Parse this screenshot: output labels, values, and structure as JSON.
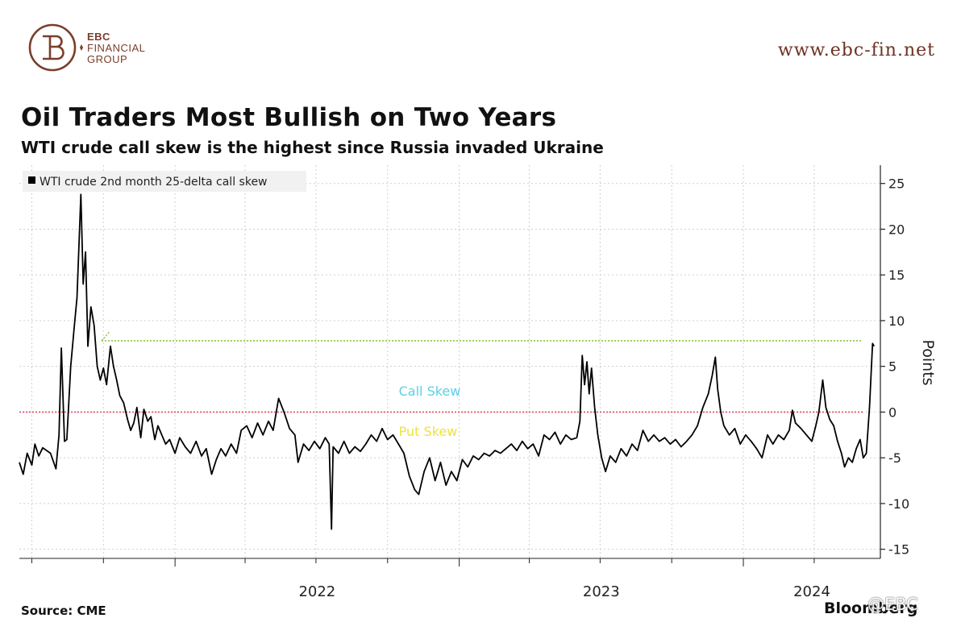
{
  "brand": {
    "name_line1": "EBC",
    "name_line2": "FINANCIAL",
    "name_line3": "GROUP",
    "url": "www.ebc-fin.net",
    "color": "#7a3e2b"
  },
  "title": "Oil Traders Most Bullish on Two Years",
  "subtitle": "WTI crude call skew is the highest since Russia invaded Ukraine",
  "source": "Source: CME",
  "footer_logo": "Bloomberg",
  "watermark": "@EBC",
  "chart_data": {
    "type": "line",
    "legend": "WTI crude 2nd month 25-delta call skew",
    "legend_placement": "top-left",
    "ylabel": "Points",
    "y_axis_side": "right",
    "ylim": [
      -16,
      27
    ],
    "yticks": [
      25,
      20,
      15,
      10,
      5,
      0,
      -5,
      -10,
      -15
    ],
    "x_tick_labels": [
      "2022",
      "2023",
      "2024"
    ],
    "xlim": [
      "2021-06-15",
      "2024-06-25"
    ],
    "grid": true,
    "annotations": [
      {
        "text": "Call Skew",
        "color": "#5bd0e4"
      },
      {
        "text": "Put Skew",
        "color": "#efe23a"
      }
    ],
    "reference_lines": [
      {
        "name": "zero",
        "y": 0,
        "color": "#e0506a",
        "style": "dotted"
      },
      {
        "name": "current level",
        "y": 7.8,
        "color": "#8cc63f",
        "style": "dotted"
      }
    ],
    "series": [
      {
        "color": "#000000",
        "points": [
          [
            "2021-06-15",
            -5.5
          ],
          [
            "2021-06-20",
            -6.8
          ],
          [
            "2021-06-25",
            -4.5
          ],
          [
            "2021-07-01",
            -5.8
          ],
          [
            "2021-07-05",
            -3.5
          ],
          [
            "2021-07-10",
            -4.8
          ],
          [
            "2021-07-15",
            -3.9
          ],
          [
            "2021-07-20",
            -4.2
          ],
          [
            "2021-07-25",
            -4.5
          ],
          [
            "2021-08-01",
            -6.2
          ],
          [
            "2021-08-05",
            -2.5
          ],
          [
            "2021-08-08",
            7.0
          ],
          [
            "2021-08-12",
            -3.2
          ],
          [
            "2021-08-15",
            -3.0
          ],
          [
            "2021-08-20",
            5.0
          ],
          [
            "2021-08-25",
            9.8
          ],
          [
            "2021-08-28",
            12.5
          ],
          [
            "2021-09-02",
            23.8
          ],
          [
            "2021-09-05",
            14.0
          ],
          [
            "2021-09-08",
            17.5
          ],
          [
            "2021-09-11",
            7.2
          ],
          [
            "2021-09-15",
            11.5
          ],
          [
            "2021-09-19",
            9.5
          ],
          [
            "2021-09-23",
            5.0
          ],
          [
            "2021-09-27",
            3.5
          ],
          [
            "2021-10-01",
            4.8
          ],
          [
            "2021-10-05",
            3.0
          ],
          [
            "2021-10-10",
            7.2
          ],
          [
            "2021-10-14",
            5.0
          ],
          [
            "2021-10-18",
            3.5
          ],
          [
            "2021-10-22",
            1.8
          ],
          [
            "2021-10-27",
            1.0
          ],
          [
            "2021-11-01",
            -0.8
          ],
          [
            "2021-11-05",
            -2.0
          ],
          [
            "2021-11-09",
            -1.2
          ],
          [
            "2021-11-13",
            0.5
          ],
          [
            "2021-11-18",
            -2.8
          ],
          [
            "2021-11-22",
            0.3
          ],
          [
            "2021-11-27",
            -1.0
          ],
          [
            "2021-12-01",
            -0.5
          ],
          [
            "2021-12-06",
            -3.0
          ],
          [
            "2021-12-10",
            -1.5
          ],
          [
            "2021-12-15",
            -2.5
          ],
          [
            "2021-12-20",
            -3.5
          ],
          [
            "2021-12-25",
            -3.0
          ],
          [
            "2022-01-01",
            -4.5
          ],
          [
            "2022-01-07",
            -2.8
          ],
          [
            "2022-01-14",
            -3.8
          ],
          [
            "2022-01-21",
            -4.5
          ],
          [
            "2022-01-28",
            -3.2
          ],
          [
            "2022-02-04",
            -4.8
          ],
          [
            "2022-02-10",
            -4.0
          ],
          [
            "2022-02-17",
            -6.8
          ],
          [
            "2022-02-23",
            -5.2
          ],
          [
            "2022-03-01",
            -4.0
          ],
          [
            "2022-03-07",
            -4.8
          ],
          [
            "2022-03-14",
            -3.5
          ],
          [
            "2022-03-21",
            -4.5
          ],
          [
            "2022-03-27",
            -2.0
          ],
          [
            "2022-04-03",
            -1.5
          ],
          [
            "2022-04-10",
            -2.8
          ],
          [
            "2022-04-17",
            -1.2
          ],
          [
            "2022-04-24",
            -2.5
          ],
          [
            "2022-05-01",
            -1.0
          ],
          [
            "2022-05-07",
            -2.0
          ],
          [
            "2022-05-14",
            1.5
          ],
          [
            "2022-05-21",
            0.0
          ],
          [
            "2022-05-28",
            -1.8
          ],
          [
            "2022-06-04",
            -2.5
          ],
          [
            "2022-06-08",
            -5.5
          ],
          [
            "2022-06-15",
            -3.5
          ],
          [
            "2022-06-22",
            -4.2
          ],
          [
            "2022-06-29",
            -3.2
          ],
          [
            "2022-07-06",
            -4.0
          ],
          [
            "2022-07-13",
            -2.8
          ],
          [
            "2022-07-18",
            -3.5
          ],
          [
            "2022-07-21",
            -12.8
          ],
          [
            "2022-07-23",
            -3.8
          ],
          [
            "2022-07-30",
            -4.5
          ],
          [
            "2022-08-06",
            -3.2
          ],
          [
            "2022-08-13",
            -4.5
          ],
          [
            "2022-08-20",
            -3.8
          ],
          [
            "2022-08-27",
            -4.3
          ],
          [
            "2022-09-03",
            -3.5
          ],
          [
            "2022-09-10",
            -2.5
          ],
          [
            "2022-09-17",
            -3.2
          ],
          [
            "2022-09-24",
            -1.8
          ],
          [
            "2022-10-01",
            -3.0
          ],
          [
            "2022-10-08",
            -2.5
          ],
          [
            "2022-10-15",
            -3.5
          ],
          [
            "2022-10-22",
            -4.5
          ],
          [
            "2022-10-29",
            -7.0
          ],
          [
            "2022-11-05",
            -8.5
          ],
          [
            "2022-11-10",
            -9.0
          ],
          [
            "2022-11-17",
            -6.5
          ],
          [
            "2022-11-24",
            -5.0
          ],
          [
            "2022-12-01",
            -7.5
          ],
          [
            "2022-12-08",
            -5.5
          ],
          [
            "2022-12-15",
            -8.0
          ],
          [
            "2022-12-22",
            -6.5
          ],
          [
            "2022-12-29",
            -7.5
          ],
          [
            "2023-01-05",
            -5.2
          ],
          [
            "2023-01-12",
            -6.0
          ],
          [
            "2023-01-19",
            -4.8
          ],
          [
            "2023-01-26",
            -5.2
          ],
          [
            "2023-02-02",
            -4.5
          ],
          [
            "2023-02-09",
            -4.8
          ],
          [
            "2023-02-16",
            -4.2
          ],
          [
            "2023-02-23",
            -4.5
          ],
          [
            "2023-03-02",
            -4.0
          ],
          [
            "2023-03-09",
            -3.5
          ],
          [
            "2023-03-16",
            -4.2
          ],
          [
            "2023-03-23",
            -3.2
          ],
          [
            "2023-03-30",
            -4.0
          ],
          [
            "2023-04-06",
            -3.5
          ],
          [
            "2023-04-13",
            -4.8
          ],
          [
            "2023-04-20",
            -2.5
          ],
          [
            "2023-04-27",
            -3.0
          ],
          [
            "2023-05-04",
            -2.2
          ],
          [
            "2023-05-11",
            -3.5
          ],
          [
            "2023-05-18",
            -2.5
          ],
          [
            "2023-05-25",
            -3.0
          ],
          [
            "2023-06-01",
            -2.8
          ],
          [
            "2023-06-05",
            -1.0
          ],
          [
            "2023-06-08",
            6.2
          ],
          [
            "2023-06-11",
            3.0
          ],
          [
            "2023-06-14",
            5.5
          ],
          [
            "2023-06-17",
            2.0
          ],
          [
            "2023-06-20",
            4.8
          ],
          [
            "2023-06-24",
            0.5
          ],
          [
            "2023-06-28",
            -2.5
          ],
          [
            "2023-07-03",
            -5.0
          ],
          [
            "2023-07-08",
            -6.5
          ],
          [
            "2023-07-14",
            -4.8
          ],
          [
            "2023-07-21",
            -5.5
          ],
          [
            "2023-07-28",
            -4.0
          ],
          [
            "2023-08-04",
            -4.8
          ],
          [
            "2023-08-11",
            -3.5
          ],
          [
            "2023-08-18",
            -4.2
          ],
          [
            "2023-08-25",
            -2.0
          ],
          [
            "2023-09-01",
            -3.2
          ],
          [
            "2023-09-08",
            -2.5
          ],
          [
            "2023-09-15",
            -3.2
          ],
          [
            "2023-09-22",
            -2.8
          ],
          [
            "2023-09-29",
            -3.5
          ],
          [
            "2023-10-06",
            -3.0
          ],
          [
            "2023-10-13",
            -3.8
          ],
          [
            "2023-10-20",
            -3.2
          ],
          [
            "2023-10-27",
            -2.5
          ],
          [
            "2023-11-03",
            -1.5
          ],
          [
            "2023-11-10",
            0.5
          ],
          [
            "2023-11-17",
            2.0
          ],
          [
            "2023-11-22",
            4.0
          ],
          [
            "2023-11-26",
            6.0
          ],
          [
            "2023-11-29",
            2.5
          ],
          [
            "2023-12-03",
            0.0
          ],
          [
            "2023-12-07",
            -1.5
          ],
          [
            "2023-12-14",
            -2.5
          ],
          [
            "2023-12-21",
            -1.8
          ],
          [
            "2023-12-28",
            -3.5
          ],
          [
            "2024-01-04",
            -2.5
          ],
          [
            "2024-01-11",
            -3.2
          ],
          [
            "2024-01-18",
            -4.0
          ],
          [
            "2024-01-25",
            -5.0
          ],
          [
            "2024-02-01",
            -2.5
          ],
          [
            "2024-02-08",
            -3.5
          ],
          [
            "2024-02-15",
            -2.5
          ],
          [
            "2024-02-22",
            -3.0
          ],
          [
            "2024-02-29",
            -2.0
          ],
          [
            "2024-03-04",
            0.2
          ],
          [
            "2024-03-08",
            -1.2
          ],
          [
            "2024-03-15",
            -1.8
          ],
          [
            "2024-03-22",
            -2.5
          ],
          [
            "2024-03-29",
            -3.2
          ],
          [
            "2024-04-03",
            -1.5
          ],
          [
            "2024-04-07",
            0.0
          ],
          [
            "2024-04-12",
            3.5
          ],
          [
            "2024-04-16",
            0.5
          ],
          [
            "2024-04-21",
            -0.8
          ],
          [
            "2024-04-26",
            -1.5
          ],
          [
            "2024-05-01",
            -3.2
          ],
          [
            "2024-05-06",
            -4.5
          ],
          [
            "2024-05-10",
            -6.0
          ],
          [
            "2024-05-15",
            -5.0
          ],
          [
            "2024-05-20",
            -5.5
          ],
          [
            "2024-05-25",
            -4.0
          ],
          [
            "2024-05-30",
            -3.0
          ],
          [
            "2024-06-03",
            -5.0
          ],
          [
            "2024-06-07",
            -4.5
          ],
          [
            "2024-06-11",
            0.5
          ],
          [
            "2024-06-15",
            7.5
          ],
          [
            "2024-06-17",
            7.2
          ]
        ]
      }
    ]
  }
}
